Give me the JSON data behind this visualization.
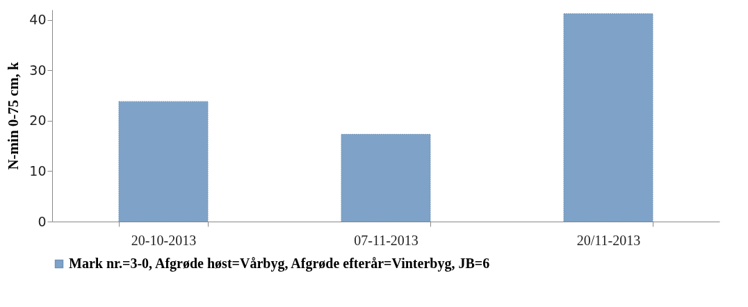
{
  "chart_data": {
    "type": "bar",
    "ylabel": "N-min 0-75 cm, k",
    "categories": [
      "20-10-2013",
      "07-11-2013",
      "20/11-2013"
    ],
    "series": [
      {
        "name": "Mark nr.=3-0, Afgrøde høst=Vårbyg, Afgrøde efterår=Vinterbyg, JB=6",
        "color": "#7fa3c8",
        "values": [
          23.8,
          17.3,
          41.2
        ]
      }
    ],
    "ylim": [
      0,
      42
    ],
    "yticks": [
      0,
      10,
      20,
      30,
      40
    ],
    "grid": false,
    "legend": "bottom"
  }
}
